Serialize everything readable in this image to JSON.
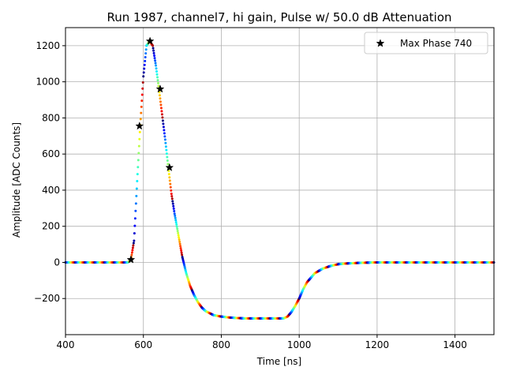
{
  "chart_data": {
    "type": "scatter",
    "title": "Run 1987, channel7, hi gain, Pulse w/ 50.0 dB Attenuation",
    "xlabel": "Time [ns]",
    "ylabel": "Amplitude [ADC Counts]",
    "xlim": [
      400,
      1500
    ],
    "ylim": [
      -400,
      1300
    ],
    "x_ticks": [
      400,
      600,
      800,
      1000,
      1200,
      1400
    ],
    "y_ticks": [
      -200,
      0,
      200,
      400,
      600,
      800,
      1000,
      1200
    ],
    "x_tick_labels": [
      "400",
      "600",
      "800",
      "1000",
      "1200",
      "1400"
    ],
    "y_tick_labels": [
      "−200",
      "0",
      "200",
      "400",
      "600",
      "800",
      "1000",
      "1200"
    ],
    "grid": true,
    "legend_position": "top-right",
    "colormap": "jet",
    "waveform": {
      "x": [
        400,
        560,
        568,
        576,
        584,
        592,
        600,
        608,
        616,
        624,
        632,
        640,
        648,
        656,
        664,
        672,
        680,
        690,
        700,
        710,
        720,
        730,
        740,
        750,
        760,
        780,
        800,
        820,
        840,
        860,
        880,
        900,
        920,
        940,
        960,
        970,
        980,
        990,
        1000,
        1010,
        1020,
        1040,
        1060,
        1080,
        1100,
        1120,
        1140,
        1160,
        1200,
        1300,
        1400,
        1500
      ],
      "y": [
        0,
        0,
        15,
        120,
        450,
        760,
        1030,
        1200,
        1225,
        1200,
        1090,
        960,
        820,
        680,
        525,
        380,
        270,
        150,
        30,
        -60,
        -130,
        -180,
        -220,
        -250,
        -270,
        -292,
        -300,
        -305,
        -308,
        -310,
        -310,
        -310,
        -310,
        -310,
        -310,
        -300,
        -275,
        -240,
        -200,
        -150,
        -110,
        -60,
        -35,
        -20,
        -10,
        -6,
        -4,
        -2,
        0,
        0,
        0,
        0
      ]
    },
    "series": [
      {
        "name": "Max Phase 740",
        "marker": "star",
        "color": "#000000",
        "x": [
          568,
          590,
          617,
          643,
          667
        ],
        "y": [
          15,
          755,
          1225,
          960,
          525
        ]
      }
    ]
  }
}
